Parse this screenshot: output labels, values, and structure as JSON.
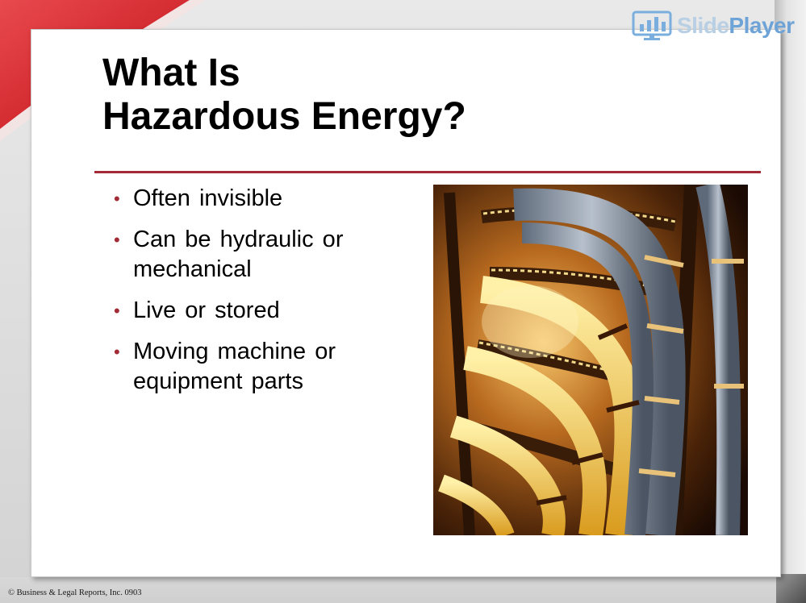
{
  "watermark": {
    "part1": "Slide",
    "part2": "Player"
  },
  "slide": {
    "title_lines": [
      "What Is",
      "Hazardous Energy?"
    ],
    "bullets": [
      {
        "text": "Often invisible"
      },
      {
        "text": "Can be hydraulic or mechanical"
      },
      {
        "text": "Live or stored"
      },
      {
        "text": "Moving machine or equipment parts"
      }
    ],
    "bullet_symbol": "•",
    "photo_subject": "cable-bundles-photo"
  },
  "footer": {
    "copyright": "© Business & Legal Reports, Inc. 0903"
  },
  "colors": {
    "accent_red": "#a32b36",
    "swoosh_red": "#e03a3e",
    "watermark_blue": "#6da3d6",
    "watermark_light": "#b8cfe4"
  }
}
